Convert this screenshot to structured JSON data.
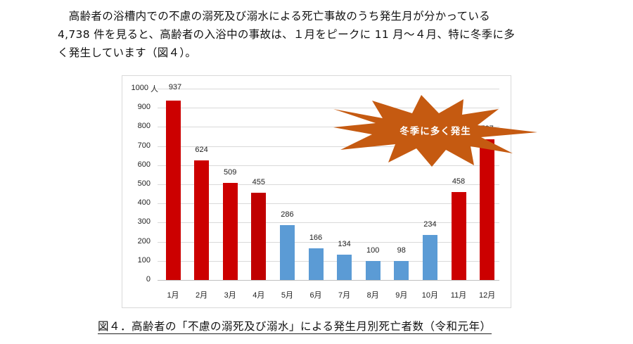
{
  "paragraph": {
    "lines": [
      "　高齢者の浴槽内での不慮の溺死及び溺水による死亡事故のうち発生月が分かっている",
      "4,738 件を見ると、高齢者の入浴中の事故は、１月をピークに 11 月～４月、特に冬季に多",
      "く発生しています（図４）。"
    ]
  },
  "callout": {
    "text": "冬季に多く発生",
    "color": "#c55a11",
    "icon": "explosion-burst-shape"
  },
  "caption": {
    "text": "図４．高齢者の「不慮の溺死及び溺水」による発生月別死亡者数（令和元年）"
  },
  "chart_data": {
    "type": "bar",
    "title": "図４．高齢者の「不慮の溺死及び溺水」による発生月別死亡者数（令和元年）",
    "xlabel": "",
    "ylabel": "人",
    "unit_label": "人",
    "categories": [
      "1月",
      "2月",
      "3月",
      "4月",
      "5月",
      "6月",
      "7月",
      "8月",
      "9月",
      "10月",
      "11月",
      "12月"
    ],
    "values": [
      937,
      624,
      509,
      455,
      286,
      166,
      134,
      100,
      98,
      234,
      458,
      737
    ],
    "value_labels": [
      "937",
      "624",
      "509",
      "455",
      "286",
      "166",
      "134",
      "100",
      "98",
      "234",
      "458",
      "737"
    ],
    "bar_colors": [
      "#cc0000",
      "#cc0000",
      "#cc0000",
      "#c00000",
      "#5b9bd5",
      "#5b9bd5",
      "#5b9bd5",
      "#5b9bd5",
      "#5b9bd5",
      "#5b9bd5",
      "#cc0000",
      "#cc0000"
    ],
    "color_groups": {
      "winter_months_red": "#cc0000",
      "other_months_blue": "#5b9bd5"
    },
    "ylim": [
      0,
      1000
    ],
    "yticks": [
      "0",
      "100",
      "200",
      "300",
      "400",
      "500",
      "600",
      "700",
      "800",
      "900",
      "1000"
    ],
    "grid": true,
    "legend": null,
    "annotations": [
      "冬季に多く発生"
    ]
  }
}
